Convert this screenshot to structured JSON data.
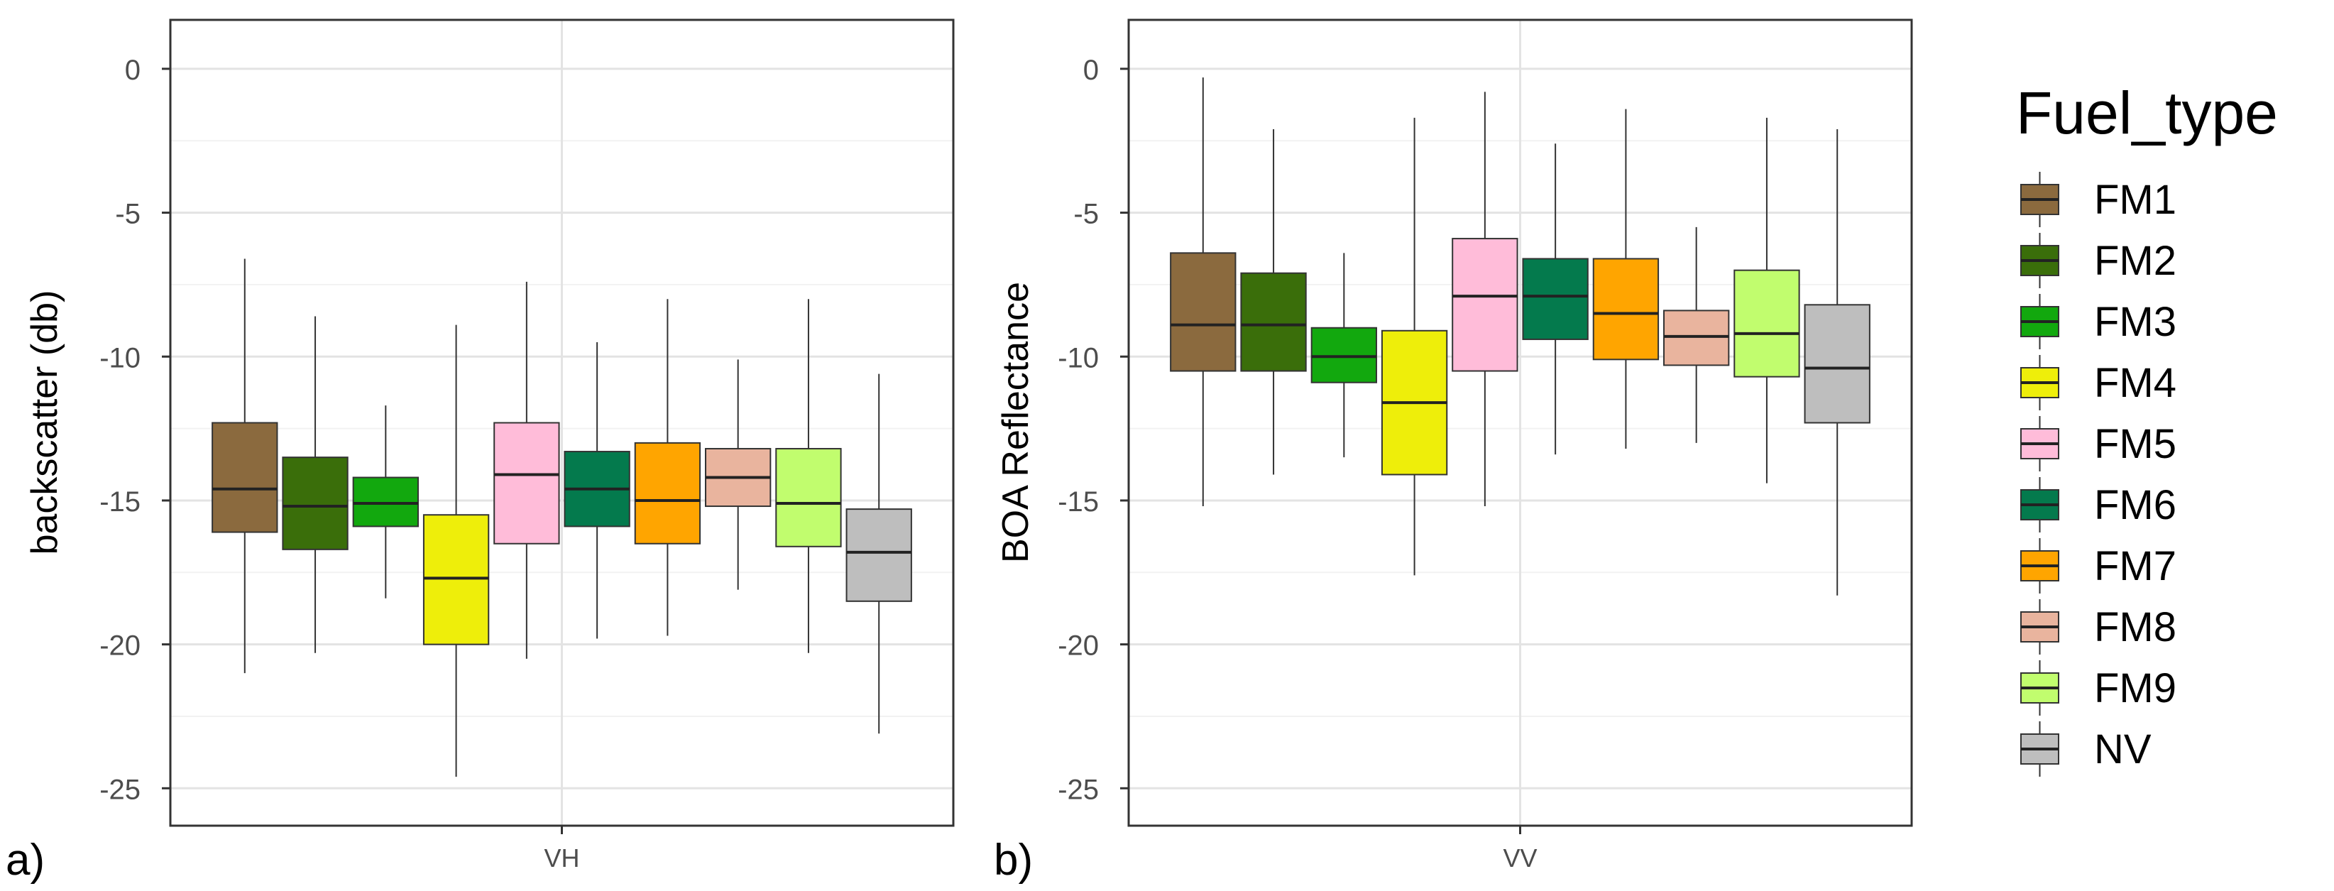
{
  "chart_data": [
    {
      "type": "box",
      "panel_label": "a)",
      "ylabel": "backscatter (db)",
      "xlabel": "",
      "category": "VH",
      "ylim": [
        -26.3,
        1.7
      ],
      "yticks": [
        0,
        -5,
        -10,
        -15,
        -20,
        -25
      ],
      "grid": true,
      "boxes": [
        {
          "group": "FM1",
          "min": -21.0,
          "q1": -16.1,
          "median": -14.6,
          "q3": -12.3,
          "max": -6.6
        },
        {
          "group": "FM2",
          "min": -20.3,
          "q1": -16.7,
          "median": -15.2,
          "q3": -13.5,
          "max": -8.6
        },
        {
          "group": "FM3",
          "min": -18.4,
          "q1": -15.9,
          "median": -15.1,
          "q3": -14.2,
          "max": -11.7
        },
        {
          "group": "FM4",
          "min": -24.6,
          "q1": -20.0,
          "median": -17.7,
          "q3": -15.5,
          "max": -8.9
        },
        {
          "group": "FM5",
          "min": -20.5,
          "q1": -16.5,
          "median": -14.1,
          "q3": -12.3,
          "max": -7.4
        },
        {
          "group": "FM6",
          "min": -19.8,
          "q1": -15.9,
          "median": -14.6,
          "q3": -13.3,
          "max": -9.5
        },
        {
          "group": "FM7",
          "min": -19.7,
          "q1": -16.5,
          "median": -15.0,
          "q3": -13.0,
          "max": -8.0
        },
        {
          "group": "FM8",
          "min": -18.1,
          "q1": -15.2,
          "median": -14.2,
          "q3": -13.2,
          "max": -10.1
        },
        {
          "group": "FM9",
          "min": -20.3,
          "q1": -16.6,
          "median": -15.1,
          "q3": -13.2,
          "max": -8.0
        },
        {
          "group": "NV",
          "min": -23.1,
          "q1": -18.5,
          "median": -16.8,
          "q3": -15.3,
          "max": -10.6
        }
      ]
    },
    {
      "type": "box",
      "panel_label": "b)",
      "ylabel": "BOA Reflectance",
      "xlabel": "",
      "category": "VV",
      "ylim": [
        -26.3,
        1.7
      ],
      "yticks": [
        0,
        -5,
        -10,
        -15,
        -20,
        -25
      ],
      "grid": true,
      "boxes": [
        {
          "group": "FM1",
          "min": -15.2,
          "q1": -10.5,
          "median": -8.9,
          "q3": -6.4,
          "max": -0.3
        },
        {
          "group": "FM2",
          "min": -14.1,
          "q1": -10.5,
          "median": -8.9,
          "q3": -7.1,
          "max": -2.1
        },
        {
          "group": "FM3",
          "min": -13.5,
          "q1": -10.9,
          "median": -10.0,
          "q3": -9.0,
          "max": -6.4
        },
        {
          "group": "FM4",
          "min": -17.6,
          "q1": -14.1,
          "median": -11.6,
          "q3": -9.1,
          "max": -1.7
        },
        {
          "group": "FM5",
          "min": -15.2,
          "q1": -10.5,
          "median": -7.9,
          "q3": -5.9,
          "max": -0.8
        },
        {
          "group": "FM6",
          "min": -13.4,
          "q1": -9.4,
          "median": -7.9,
          "q3": -6.6,
          "max": -2.6
        },
        {
          "group": "FM7",
          "min": -13.2,
          "q1": -10.1,
          "median": -8.5,
          "q3": -6.6,
          "max": -1.4
        },
        {
          "group": "FM8",
          "min": -13.0,
          "q1": -10.3,
          "median": -9.3,
          "q3": -8.4,
          "max": -5.5
        },
        {
          "group": "FM9",
          "min": -14.4,
          "q1": -10.7,
          "median": -9.2,
          "q3": -7.0,
          "max": -1.7
        },
        {
          "group": "NV",
          "min": -18.3,
          "q1": -12.3,
          "median": -10.4,
          "q3": -8.2,
          "max": -2.1
        }
      ]
    }
  ],
  "legend": {
    "title": "Fuel_type",
    "placement": "right",
    "items": [
      {
        "label": "FM1",
        "color": "#8B6A3E"
      },
      {
        "label": "FM2",
        "color": "#3A6E0A"
      },
      {
        "label": "FM3",
        "color": "#12A80E"
      },
      {
        "label": "FM4",
        "color": "#EEEE0A"
      },
      {
        "label": "FM5",
        "color": "#FFBCD9"
      },
      {
        "label": "FM6",
        "color": "#047A4D"
      },
      {
        "label": "FM7",
        "color": "#FFA500"
      },
      {
        "label": "FM8",
        "color": "#E9B49E"
      },
      {
        "label": "FM9",
        "color": "#C1FD6E"
      },
      {
        "label": "NV",
        "color": "#BEBEBE"
      }
    ]
  }
}
